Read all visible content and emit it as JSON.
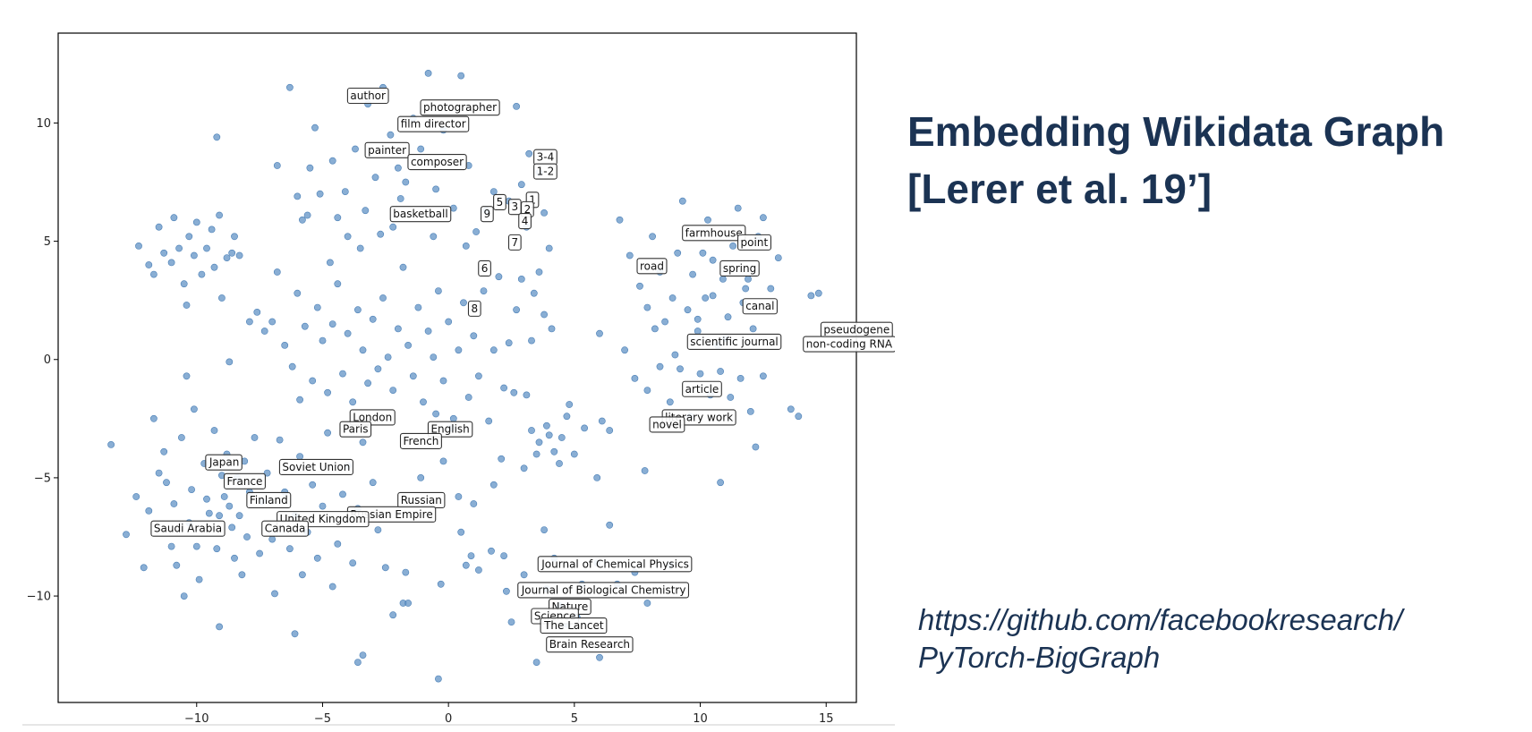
{
  "slide": {
    "title_line1": "Embedding Wikidata Graph",
    "title_line2": "[Lerer et al. 19’]",
    "link_line1": "https://github.com/facebookresearch/",
    "link_line2": "PyTorch-BigGraph",
    "colors": {
      "title": "#1b3353",
      "point": "#5b8fc4",
      "box_edge": "#333333"
    }
  },
  "chart_data": {
    "type": "scatter",
    "title": "",
    "xlabel": "",
    "ylabel": "",
    "xlim": [
      -15.5,
      16.2
    ],
    "ylim": [
      -14.5,
      13.8
    ],
    "xticks": [
      -10,
      -5,
      0,
      5,
      10,
      15
    ],
    "yticks": [
      -10,
      -5,
      0,
      5,
      10
    ],
    "xtick_labels": [
      "−10",
      "−5",
      "0",
      "5",
      "10",
      "15"
    ],
    "ytick_labels": [
      "−10",
      "−5",
      "0",
      "5",
      "10"
    ],
    "grid": false,
    "point_color": "#5b8fc4",
    "annotations": [
      {
        "text": "author",
        "x": -3.9,
        "y": 11.0
      },
      {
        "text": "photographer",
        "x": -1.0,
        "y": 10.5
      },
      {
        "text": "film director",
        "x": -1.9,
        "y": 9.8
      },
      {
        "text": "painter",
        "x": -3.2,
        "y": 8.7
      },
      {
        "text": "composer",
        "x": -1.5,
        "y": 8.2
      },
      {
        "text": "3-4",
        "x": 3.5,
        "y": 8.4
      },
      {
        "text": "1-2",
        "x": 3.5,
        "y": 7.8
      },
      {
        "text": "1",
        "x": 3.2,
        "y": 6.6
      },
      {
        "text": "5",
        "x": 1.9,
        "y": 6.5
      },
      {
        "text": "3",
        "x": 2.5,
        "y": 6.3
      },
      {
        "text": "2",
        "x": 3.0,
        "y": 6.2
      },
      {
        "text": "9",
        "x": 1.4,
        "y": 6.0
      },
      {
        "text": "4",
        "x": 2.9,
        "y": 5.7
      },
      {
        "text": "basketball",
        "x": -2.2,
        "y": 6.0
      },
      {
        "text": "7",
        "x": 2.5,
        "y": 4.8
      },
      {
        "text": "farmhouse",
        "x": 9.4,
        "y": 5.2
      },
      {
        "text": "point",
        "x": 11.6,
        "y": 4.8
      },
      {
        "text": "6",
        "x": 1.3,
        "y": 3.7
      },
      {
        "text": "road",
        "x": 7.6,
        "y": 3.8
      },
      {
        "text": "spring",
        "x": 10.9,
        "y": 3.7
      },
      {
        "text": "8",
        "x": 0.9,
        "y": 2.0
      },
      {
        "text": "canal",
        "x": 11.8,
        "y": 2.1
      },
      {
        "text": "pseudogene",
        "x": 14.9,
        "y": 1.1
      },
      {
        "text": "scientific journal",
        "x": 9.6,
        "y": 0.6
      },
      {
        "text": "non-coding RNA",
        "x": 14.2,
        "y": 0.5
      },
      {
        "text": "article",
        "x": 9.4,
        "y": -1.4
      },
      {
        "text": "literary work",
        "x": 8.6,
        "y": -2.6
      },
      {
        "text": "novel",
        "x": 8.1,
        "y": -2.9
      },
      {
        "text": "London",
        "x": -3.8,
        "y": -2.6
      },
      {
        "text": "Paris",
        "x": -4.2,
        "y": -3.1
      },
      {
        "text": "English",
        "x": -0.7,
        "y": -3.1
      },
      {
        "text": "French",
        "x": -1.8,
        "y": -3.6
      },
      {
        "text": "Japan",
        "x": -9.5,
        "y": -4.5
      },
      {
        "text": "Soviet Union",
        "x": -6.6,
        "y": -4.7
      },
      {
        "text": "France",
        "x": -8.8,
        "y": -5.3
      },
      {
        "text": "Finland",
        "x": -7.9,
        "y": -6.1
      },
      {
        "text": "Russian",
        "x": -1.9,
        "y": -6.1
      },
      {
        "text": "Russian Empire",
        "x": -3.9,
        "y": -6.7
      },
      {
        "text": "United Kingdom",
        "x": -6.7,
        "y": -6.9
      },
      {
        "text": "Saudi Arabia",
        "x": -11.7,
        "y": -7.3
      },
      {
        "text": "Canada",
        "x": -7.3,
        "y": -7.3
      },
      {
        "text": "Journal of Chemical Physics",
        "x": 3.7,
        "y": -8.8
      },
      {
        "text": "Journal of Biological Chemistry",
        "x": 2.9,
        "y": -9.9
      },
      {
        "text": "Nature",
        "x": 4.1,
        "y": -10.6
      },
      {
        "text": "Science",
        "x": 3.4,
        "y": -11.0
      },
      {
        "text": "The Lancet",
        "x": 3.8,
        "y": -11.4
      },
      {
        "text": "Brain Research",
        "x": 4.0,
        "y": -12.2
      }
    ],
    "points": [
      [
        -13.4,
        -3.6
      ],
      [
        -12.8,
        -7.4
      ],
      [
        -12.4,
        -5.8
      ],
      [
        -12.1,
        -8.8
      ],
      [
        -11.9,
        -6.4
      ],
      [
        -11.7,
        -2.5
      ],
      [
        -11.5,
        -4.8
      ],
      [
        -11.2,
        -5.2
      ],
      [
        -11.0,
        -7.9
      ],
      [
        -10.9,
        -6.1
      ],
      [
        -10.8,
        -8.7
      ],
      [
        -10.6,
        -3.3
      ],
      [
        -10.5,
        -10.0
      ],
      [
        -10.3,
        -6.9
      ],
      [
        -10.2,
        -5.5
      ],
      [
        -10.1,
        -2.1
      ],
      [
        -10.0,
        -7.9
      ],
      [
        -9.9,
        -9.3
      ],
      [
        -9.7,
        -4.4
      ],
      [
        -9.6,
        -5.9
      ],
      [
        -9.5,
        -6.5
      ],
      [
        -9.3,
        -3.0
      ],
      [
        -9.2,
        -8.0
      ],
      [
        -9.1,
        -6.6
      ],
      [
        -9.0,
        -4.9
      ],
      [
        -8.9,
        -5.8
      ],
      [
        -8.8,
        -4.0
      ],
      [
        -8.7,
        -6.2
      ],
      [
        -8.6,
        -7.1
      ],
      [
        -8.5,
        -8.4
      ],
      [
        -8.4,
        -5.0
      ],
      [
        -8.3,
        -6.6
      ],
      [
        -8.2,
        -9.1
      ],
      [
        -8.1,
        -4.3
      ],
      [
        -8.0,
        -7.5
      ],
      [
        -7.9,
        -5.6
      ],
      [
        -7.7,
        -3.3
      ],
      [
        -7.5,
        -8.2
      ],
      [
        -7.4,
        -6.0
      ],
      [
        -7.2,
        -4.8
      ],
      [
        -7.0,
        -7.6
      ],
      [
        -6.9,
        -9.9
      ],
      [
        -6.7,
        -3.4
      ],
      [
        -6.5,
        -5.6
      ],
      [
        -6.3,
        -8.0
      ],
      [
        -6.1,
        -6.6
      ],
      [
        -5.9,
        -4.1
      ],
      [
        -5.8,
        -9.1
      ],
      [
        -5.6,
        -7.3
      ],
      [
        -5.4,
        -5.3
      ],
      [
        -5.2,
        -8.4
      ],
      [
        -5.0,
        -6.2
      ],
      [
        -4.8,
        -3.1
      ],
      [
        -4.6,
        -9.6
      ],
      [
        -4.4,
        -7.8
      ],
      [
        -4.2,
        -5.7
      ],
      [
        -4.0,
        -4.5
      ],
      [
        -3.8,
        -8.6
      ],
      [
        -3.6,
        -6.3
      ],
      [
        -3.4,
        -3.5
      ],
      [
        -12.3,
        4.8
      ],
      [
        -11.9,
        4.0
      ],
      [
        -11.7,
        3.6
      ],
      [
        -11.5,
        5.6
      ],
      [
        -11.3,
        4.5
      ],
      [
        -11.0,
        4.1
      ],
      [
        -10.9,
        6.0
      ],
      [
        -10.7,
        4.7
      ],
      [
        -10.5,
        3.2
      ],
      [
        -10.3,
        5.2
      ],
      [
        -10.1,
        4.4
      ],
      [
        -10.0,
        5.8
      ],
      [
        -9.8,
        3.6
      ],
      [
        -9.6,
        4.7
      ],
      [
        -9.4,
        5.5
      ],
      [
        -9.3,
        3.9
      ],
      [
        -9.1,
        6.1
      ],
      [
        -9.0,
        2.6
      ],
      [
        -8.8,
        4.3
      ],
      [
        -8.6,
        4.5
      ],
      [
        -8.5,
        5.2
      ],
      [
        -8.3,
        4.4
      ],
      [
        -10.4,
        -0.7
      ],
      [
        -10.4,
        2.3
      ],
      [
        -11.3,
        -3.9
      ],
      [
        -7.9,
        1.6
      ],
      [
        -7.6,
        2.0
      ],
      [
        -7.3,
        1.2
      ],
      [
        -7.0,
        1.6
      ],
      [
        -6.8,
        3.7
      ],
      [
        -6.5,
        0.6
      ],
      [
        -6.2,
        -0.3
      ],
      [
        -6.0,
        2.8
      ],
      [
        -5.7,
        1.4
      ],
      [
        -5.4,
        -0.9
      ],
      [
        -5.2,
        2.2
      ],
      [
        -5.0,
        0.8
      ],
      [
        -4.8,
        -1.4
      ],
      [
        -4.6,
        1.5
      ],
      [
        -4.4,
        3.2
      ],
      [
        -4.2,
        -0.6
      ],
      [
        -4.0,
        1.1
      ],
      [
        -3.8,
        -1.8
      ],
      [
        -3.6,
        2.1
      ],
      [
        -3.4,
        0.4
      ],
      [
        -3.2,
        -1.0
      ],
      [
        -3.0,
        1.7
      ],
      [
        -2.8,
        -0.4
      ],
      [
        -2.6,
        2.6
      ],
      [
        -2.4,
        0.1
      ],
      [
        -2.2,
        -1.3
      ],
      [
        -2.0,
        1.3
      ],
      [
        -1.8,
        3.9
      ],
      [
        -1.6,
        0.6
      ],
      [
        -1.4,
        -0.7
      ],
      [
        -1.2,
        2.2
      ],
      [
        -1.0,
        -1.8
      ],
      [
        -0.8,
        1.2
      ],
      [
        -0.6,
        0.1
      ],
      [
        -0.4,
        2.9
      ],
      [
        -0.2,
        -0.9
      ],
      [
        0.0,
        1.6
      ],
      [
        0.2,
        -2.5
      ],
      [
        0.4,
        0.4
      ],
      [
        0.6,
        2.4
      ],
      [
        0.8,
        -1.6
      ],
      [
        1.0,
        1.0
      ],
      [
        1.2,
        -0.7
      ],
      [
        1.4,
        2.9
      ],
      [
        1.6,
        -2.6
      ],
      [
        1.8,
        0.4
      ],
      [
        2.0,
        3.5
      ],
      [
        2.2,
        -1.2
      ],
      [
        -8.7,
        -0.1
      ],
      [
        -5.9,
        -1.7
      ],
      [
        -6.3,
        11.5
      ],
      [
        -5.3,
        9.8
      ],
      [
        -4.6,
        8.4
      ],
      [
        -4.1,
        7.1
      ],
      [
        -3.7,
        8.9
      ],
      [
        -3.2,
        10.8
      ],
      [
        -2.9,
        7.7
      ],
      [
        -2.6,
        11.5
      ],
      [
        -2.3,
        9.5
      ],
      [
        -2.0,
        8.1
      ],
      [
        -1.7,
        7.5
      ],
      [
        -1.4,
        10.2
      ],
      [
        -1.1,
        8.9
      ],
      [
        -0.8,
        12.1
      ],
      [
        -0.5,
        7.2
      ],
      [
        -0.2,
        9.7
      ],
      [
        0.2,
        6.4
      ],
      [
        0.5,
        12.0
      ],
      [
        0.8,
        8.2
      ],
      [
        1.1,
        5.4
      ],
      [
        1.5,
        6.3
      ],
      [
        1.8,
        7.1
      ],
      [
        -6.8,
        8.2
      ],
      [
        -6.0,
        6.9
      ],
      [
        -5.6,
        6.1
      ],
      [
        -5.1,
        7.0
      ],
      [
        -4.4,
        6.0
      ],
      [
        -4.0,
        5.2
      ],
      [
        -3.3,
        6.3
      ],
      [
        -2.7,
        5.3
      ],
      [
        -0.6,
        5.2
      ],
      [
        -1.9,
        6.8
      ],
      [
        2.7,
        10.7
      ],
      [
        -9.2,
        9.4
      ],
      [
        -5.5,
        8.1
      ],
      [
        0.7,
        4.8
      ],
      [
        -2.2,
        5.6
      ],
      [
        -4.7,
        4.1
      ],
      [
        -5.8,
        5.9
      ],
      [
        -3.5,
        4.7
      ],
      [
        3.2,
        8.7
      ],
      [
        3.6,
        7.9
      ],
      [
        2.4,
        6.7
      ],
      [
        2.9,
        7.4
      ],
      [
        3.1,
        5.6
      ],
      [
        3.8,
        6.2
      ],
      [
        4.0,
        4.7
      ],
      [
        3.6,
        3.7
      ],
      [
        3.4,
        2.8
      ],
      [
        3.8,
        1.9
      ],
      [
        2.9,
        3.4
      ],
      [
        2.7,
        2.1
      ],
      [
        4.1,
        1.3
      ],
      [
        3.3,
        0.8
      ],
      [
        2.4,
        0.7
      ],
      [
        6.8,
        5.9
      ],
      [
        7.2,
        4.4
      ],
      [
        7.6,
        3.1
      ],
      [
        7.9,
        2.2
      ],
      [
        8.1,
        5.2
      ],
      [
        8.4,
        3.7
      ],
      [
        8.6,
        1.6
      ],
      [
        8.9,
        2.6
      ],
      [
        9.1,
        4.5
      ],
      [
        9.3,
        6.7
      ],
      [
        9.5,
        2.1
      ],
      [
        9.7,
        3.6
      ],
      [
        9.9,
        1.2
      ],
      [
        10.1,
        4.5
      ],
      [
        10.3,
        5.9
      ],
      [
        10.5,
        2.7
      ],
      [
        10.7,
        0.6
      ],
      [
        10.9,
        3.4
      ],
      [
        11.1,
        1.8
      ],
      [
        11.3,
        4.8
      ],
      [
        11.5,
        6.4
      ],
      [
        11.7,
        2.4
      ],
      [
        11.9,
        3.4
      ],
      [
        12.1,
        1.3
      ],
      [
        12.3,
        5.2
      ],
      [
        12.5,
        6.0
      ],
      [
        12.8,
        3.0
      ],
      [
        13.1,
        4.3
      ],
      [
        6.0,
        1.1
      ],
      [
        7.0,
        0.4
      ],
      [
        7.4,
        -0.8
      ],
      [
        7.9,
        -1.3
      ],
      [
        8.4,
        -0.3
      ],
      [
        8.8,
        -1.8
      ],
      [
        9.2,
        -0.4
      ],
      [
        9.6,
        -2.4
      ],
      [
        10.0,
        -0.6
      ],
      [
        10.4,
        -1.5
      ],
      [
        10.8,
        -0.5
      ],
      [
        11.2,
        -1.6
      ],
      [
        11.6,
        -0.8
      ],
      [
        12.0,
        -2.2
      ],
      [
        12.5,
        -0.7
      ],
      [
        13.6,
        -2.1
      ],
      [
        13.9,
        -2.4
      ],
      [
        14.4,
        2.7
      ],
      [
        14.7,
        2.8
      ],
      [
        12.2,
        -3.7
      ],
      [
        10.8,
        -5.2
      ],
      [
        7.8,
        -4.7
      ],
      [
        5.9,
        -5.0
      ],
      [
        6.4,
        -3.0
      ],
      [
        8.8,
        -8.7
      ],
      [
        9.9,
        1.7
      ],
      [
        11.8,
        3.0
      ],
      [
        10.2,
        2.6
      ],
      [
        11.0,
        0.9
      ],
      [
        8.2,
        1.3
      ],
      [
        9.0,
        0.2
      ],
      [
        10.5,
        4.2
      ],
      [
        3.3,
        -3.0
      ],
      [
        3.6,
        -3.5
      ],
      [
        3.9,
        -2.8
      ],
      [
        4.2,
        -3.9
      ],
      [
        4.5,
        -3.3
      ],
      [
        3.5,
        -4.0
      ],
      [
        4.0,
        -3.2
      ],
      [
        4.7,
        -2.4
      ],
      [
        3.0,
        -4.6
      ],
      [
        5.4,
        -2.9
      ],
      [
        6.1,
        -2.6
      ],
      [
        5.0,
        -4.0
      ],
      [
        4.4,
        -4.4
      ],
      [
        4.8,
        -1.9
      ],
      [
        3.1,
        -1.5
      ],
      [
        2.6,
        -1.4
      ],
      [
        2.1,
        -4.2
      ],
      [
        1.8,
        -5.3
      ],
      [
        1.0,
        -6.1
      ],
      [
        0.5,
        -7.3
      ],
      [
        0.9,
        -8.3
      ],
      [
        0.7,
        -8.7
      ],
      [
        1.2,
        -8.9
      ],
      [
        2.2,
        -8.3
      ],
      [
        2.3,
        -9.8
      ],
      [
        2.5,
        -11.1
      ],
      [
        3.0,
        -9.1
      ],
      [
        3.8,
        -7.2
      ],
      [
        4.2,
        -8.4
      ],
      [
        5.3,
        -9.5
      ],
      [
        5.9,
        -8.6
      ],
      [
        6.4,
        -7.0
      ],
      [
        7.4,
        -9.0
      ],
      [
        7.9,
        -10.3
      ],
      [
        6.7,
        -9.5
      ],
      [
        3.9,
        -9.7
      ],
      [
        4.4,
        -10.4
      ],
      [
        4.7,
        -11.2
      ],
      [
        5.1,
        -10.9
      ],
      [
        6.0,
        -12.6
      ],
      [
        3.5,
        -12.8
      ],
      [
        -0.4,
        -13.5
      ],
      [
        -3.6,
        -12.8
      ],
      [
        -3.4,
        -12.5
      ],
      [
        -1.8,
        -10.3
      ],
      [
        -1.6,
        -10.3
      ],
      [
        -2.2,
        -10.8
      ],
      [
        -6.1,
        -11.6
      ],
      [
        -9.1,
        -11.3
      ],
      [
        -2.5,
        -8.8
      ],
      [
        -1.7,
        -9.0
      ],
      [
        -0.3,
        -9.5
      ],
      [
        -1.1,
        -5.0
      ],
      [
        -3.0,
        -5.2
      ],
      [
        -0.2,
        -4.3
      ],
      [
        -2.8,
        -7.2
      ],
      [
        0.4,
        -5.8
      ],
      [
        -0.5,
        -2.3
      ],
      [
        1.7,
        -8.1
      ],
      [
        0.1,
        -2.9
      ]
    ]
  }
}
